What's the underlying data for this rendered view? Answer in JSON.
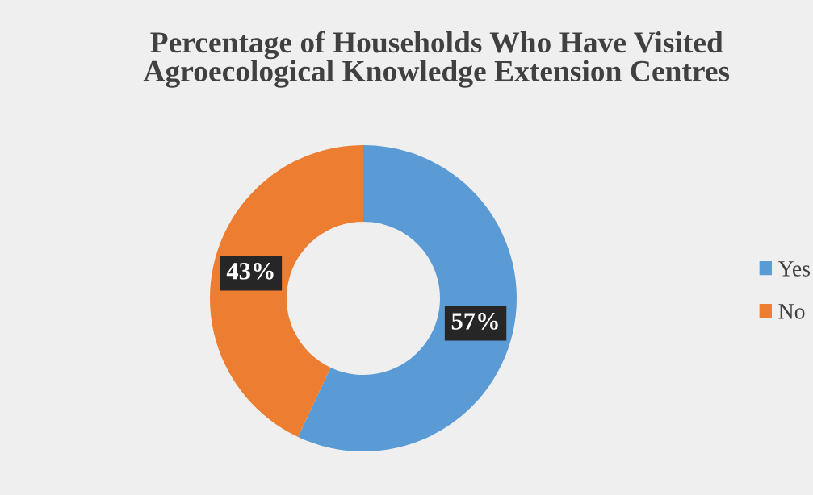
{
  "chart_data": {
    "type": "donut",
    "title": "Percentage of Households Who Have Visited\nAgroecological Knowledge Extension Centres",
    "categories": [
      "Yes",
      "No"
    ],
    "values": [
      57,
      43
    ],
    "colors": [
      "#5b9bd5",
      "#ed7d31"
    ],
    "value_labels": [
      "57%",
      "43%"
    ],
    "legend": "right"
  }
}
